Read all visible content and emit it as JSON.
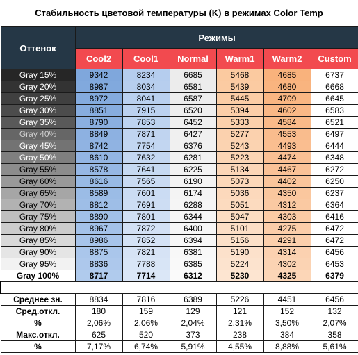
{
  "title": "Стабильность цветовой температуры (K) в режимах Color Temp",
  "table": {
    "row_header": "Оттенок",
    "group_header": "Режимы",
    "columns": [
      "Cool2",
      "Cool1",
      "Normal",
      "Warm1",
      "Warm2",
      "Custom"
    ],
    "rows": [
      {
        "label": "Gray 15%",
        "values": [
          9342,
          8234,
          6685,
          5468,
          4685,
          6737
        ]
      },
      {
        "label": "Gray 20%",
        "values": [
          8987,
          8034,
          6581,
          5439,
          4680,
          6668
        ]
      },
      {
        "label": "Gray 25%",
        "values": [
          8972,
          8041,
          6587,
          5445,
          4709,
          6645
        ]
      },
      {
        "label": "Gray 30%",
        "values": [
          8851,
          7915,
          6520,
          5394,
          4602,
          6583
        ]
      },
      {
        "label": "Gray 35%",
        "values": [
          8790,
          7853,
          6452,
          5333,
          4584,
          6521
        ]
      },
      {
        "label": "Gray 40%",
        "values": [
          8849,
          7871,
          6427,
          5277,
          4553,
          6497
        ]
      },
      {
        "label": "Gray 45%",
        "values": [
          8742,
          7754,
          6376,
          5243,
          4493,
          6444
        ]
      },
      {
        "label": "Gray 50%",
        "values": [
          8610,
          7632,
          6281,
          5223,
          4474,
          6348
        ]
      },
      {
        "label": "Gray 55%",
        "values": [
          8578,
          7641,
          6225,
          5134,
          4467,
          6272
        ]
      },
      {
        "label": "Gray 60%",
        "values": [
          8616,
          7565,
          6190,
          5073,
          4402,
          6250
        ]
      },
      {
        "label": "Gray 65%",
        "values": [
          8589,
          7601,
          6174,
          5036,
          4350,
          6237
        ]
      },
      {
        "label": "Gray 70%",
        "values": [
          8812,
          7691,
          6288,
          5051,
          4312,
          6364
        ]
      },
      {
        "label": "Gray 75%",
        "values": [
          8890,
          7801,
          6344,
          5047,
          4303,
          6416
        ]
      },
      {
        "label": "Gray 80%",
        "values": [
          8967,
          7872,
          6400,
          5101,
          4275,
          6472
        ]
      },
      {
        "label": "Gray 85%",
        "values": [
          8986,
          7852,
          6394,
          5156,
          4291,
          6472
        ]
      },
      {
        "label": "Gray 90%",
        "values": [
          8875,
          7821,
          6381,
          5190,
          4314,
          6456
        ]
      },
      {
        "label": "Gray 95%",
        "values": [
          8836,
          7788,
          6385,
          5224,
          4302,
          6453
        ]
      },
      {
        "label": "Gray 100%",
        "values": [
          8717,
          7714,
          6312,
          5230,
          4325,
          6379
        ]
      }
    ],
    "summary": [
      {
        "label": "Среднее зн.",
        "values": [
          8834,
          7816,
          6389,
          5226,
          4451,
          6456
        ]
      },
      {
        "label": "Сред.откл.",
        "values": [
          180,
          159,
          129,
          121,
          152,
          132
        ]
      },
      {
        "label": "%",
        "values": [
          "2,06%",
          "2,06%",
          "2,04%",
          "2,31%",
          "3,50%",
          "2,07%"
        ]
      },
      {
        "label": "Макс.откл.",
        "values": [
          625,
          520,
          373,
          238,
          384,
          358
        ]
      },
      {
        "label": "%",
        "values": [
          "7,17%",
          "6,74%",
          "5,91%",
          "4,55%",
          "8,88%",
          "5,61%"
        ]
      }
    ]
  }
}
